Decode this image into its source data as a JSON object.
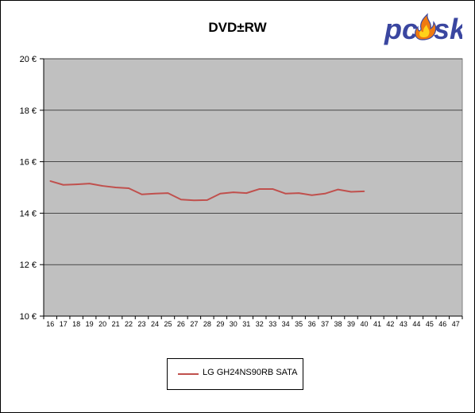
{
  "chart_data": {
    "type": "line",
    "title": "DVD±RW",
    "xlabel": "",
    "ylabel": "",
    "x": [
      "16",
      "17",
      "18",
      "19",
      "20",
      "21",
      "22",
      "23",
      "24",
      "25",
      "26",
      "27",
      "28",
      "29",
      "30",
      "31",
      "32",
      "33",
      "34",
      "35",
      "36",
      "37",
      "38",
      "39",
      "40",
      "41",
      "42",
      "43",
      "44",
      "45",
      "46",
      "47"
    ],
    "ylim": [
      10,
      20
    ],
    "yticks": [
      10,
      12,
      14,
      16,
      18,
      20
    ],
    "ytick_labels": [
      "10 €",
      "12 €",
      "14 €",
      "16 €",
      "18 €",
      "20 €"
    ],
    "grid": true,
    "legend_position": "bottom",
    "series": [
      {
        "name": "LG GH24NS90RB SATA",
        "color": "#c0504d",
        "values": [
          15.25,
          15.1,
          15.12,
          15.15,
          15.06,
          15.0,
          14.97,
          14.73,
          14.76,
          14.78,
          14.53,
          14.5,
          14.51,
          14.76,
          14.81,
          14.78,
          14.94,
          14.94,
          14.76,
          14.78,
          14.7,
          14.76,
          14.92,
          14.83,
          14.85,
          null,
          null,
          null,
          null,
          null,
          null,
          null
        ]
      }
    ]
  },
  "logo": {
    "text_left": "pc",
    "text_right": "sk",
    "colors": {
      "blue": "#3a46a0",
      "flame_outer": "#f07a10",
      "flame_inner": "#ffd21a"
    }
  },
  "colors": {
    "plot_background": "#c0c0c0",
    "gridline": "#000000",
    "axis": "#000000"
  }
}
